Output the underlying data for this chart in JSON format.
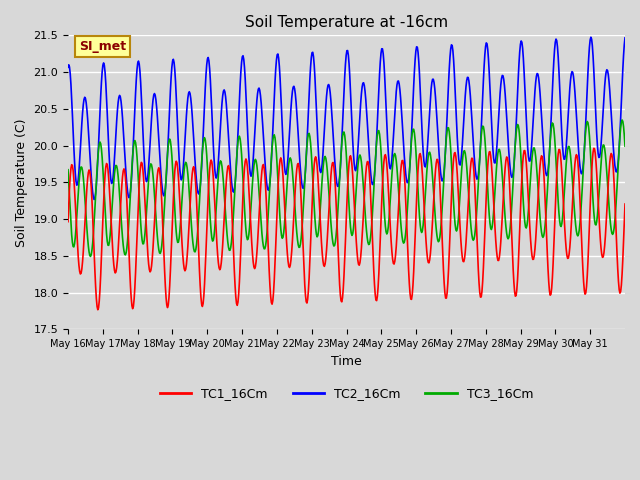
{
  "title": "Soil Temperature at -16cm",
  "xlabel": "Time",
  "ylabel": "Soil Temperature (C)",
  "ylim": [
    17.5,
    21.5
  ],
  "annotation_text": "SI_met",
  "annotation_color": "#8B0000",
  "annotation_bg": "#FFFF99",
  "annotation_border": "#B8860B",
  "bg_color": "#D8D8D8",
  "plot_bg_color": "#D8D8D8",
  "grid_color": "white",
  "line_colors": {
    "TC1_16Cm": "#FF0000",
    "TC2_16Cm": "#0000FF",
    "TC3_16Cm": "#00AA00"
  },
  "line_width": 1.2,
  "x_tick_labels": [
    "May 16",
    "May 17",
    "May 18",
    "May 19",
    "May 20",
    "May 21",
    "May 22",
    "May 23",
    "May 24",
    "May 25",
    "May 26",
    "May 27",
    "May 28",
    "May 29",
    "May 30",
    "May 31"
  ],
  "legend_labels": [
    "TC1_16Cm",
    "TC2_16Cm",
    "TC3_16Cm"
  ]
}
